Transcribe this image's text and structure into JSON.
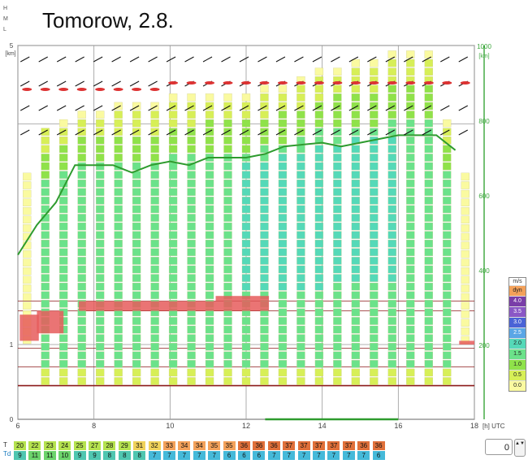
{
  "hml": [
    "H",
    "M",
    "L"
  ],
  "title": "Tomorow, 2.8.",
  "chart_data": {
    "type": "heatmap",
    "title": "Tomorow, 2.8.",
    "x_range": [
      6,
      18
    ],
    "x_ticks": [
      6,
      8,
      10,
      12,
      14,
      16,
      18
    ],
    "x_unit": "[h] UTC",
    "y_left_range": [
      0,
      5
    ],
    "y_left_ticks": [
      0,
      1,
      5
    ],
    "y_left_unit": "[km]",
    "y_right_range": [
      0,
      1000
    ],
    "y_right_ticks": [
      200,
      400,
      600,
      800,
      1000
    ],
    "y_right_unit": "[km]",
    "boundary_layer_line": [
      {
        "x": 6.0,
        "y": 2.2
      },
      {
        "x": 6.5,
        "y": 2.6
      },
      {
        "x": 7.0,
        "y": 2.9
      },
      {
        "x": 7.5,
        "y": 3.4
      },
      {
        "x": 8.5,
        "y": 3.4
      },
      {
        "x": 9.0,
        "y": 3.3
      },
      {
        "x": 9.5,
        "y": 3.4
      },
      {
        "x": 10.0,
        "y": 3.45
      },
      {
        "x": 10.5,
        "y": 3.4
      },
      {
        "x": 11.0,
        "y": 3.5
      },
      {
        "x": 12.0,
        "y": 3.5
      },
      {
        "x": 12.5,
        "y": 3.55
      },
      {
        "x": 13.0,
        "y": 3.65
      },
      {
        "x": 14.0,
        "y": 3.7
      },
      {
        "x": 14.5,
        "y": 3.65
      },
      {
        "x": 15.0,
        "y": 3.7
      },
      {
        "x": 16.0,
        "y": 3.8
      },
      {
        "x": 17.0,
        "y": 3.8
      },
      {
        "x": 17.5,
        "y": 3.6
      }
    ],
    "legend": {
      "title": "m/s",
      "items": [
        {
          "label": "dyn",
          "color": "#f3a15a"
        },
        {
          "label": "4.0",
          "color": "#7a3ea8"
        },
        {
          "label": "3.5",
          "color": "#8a57c6"
        },
        {
          "label": "3.0",
          "color": "#4a63d6"
        },
        {
          "label": "2.5",
          "color": "#5aa6e6"
        },
        {
          "label": "2.0",
          "color": "#55d9b8"
        },
        {
          "label": "1.5",
          "color": "#6be28a"
        },
        {
          "label": "1.0",
          "color": "#8fe24a"
        },
        {
          "label": "0.5",
          "color": "#d7ef57"
        },
        {
          "label": "0.0",
          "color": "#fafaa0"
        }
      ]
    },
    "T": [
      20,
      22,
      23,
      24,
      25,
      27,
      28,
      29,
      31,
      32,
      33,
      34,
      34,
      35,
      35,
      36,
      36,
      36,
      37,
      37,
      37,
      37,
      37,
      36,
      36
    ],
    "Td": [
      9,
      11,
      11,
      10,
      9,
      9,
      8,
      8,
      8,
      7,
      7,
      7,
      7,
      7,
      6,
      6,
      6,
      7,
      7,
      7,
      7,
      7,
      7,
      7,
      6
    ],
    "row_labels": {
      "t": "T",
      "td": "Td"
    },
    "spinner_value": "0",
    "spinner_arrows": "▲▼",
    "colors": {
      "grid": "#333333",
      "bl_line": "#2e9b2e",
      "right_axis": "#3aa63a",
      "inversion": "#e65c5c",
      "dark_line": "#8b1a1a"
    }
  }
}
